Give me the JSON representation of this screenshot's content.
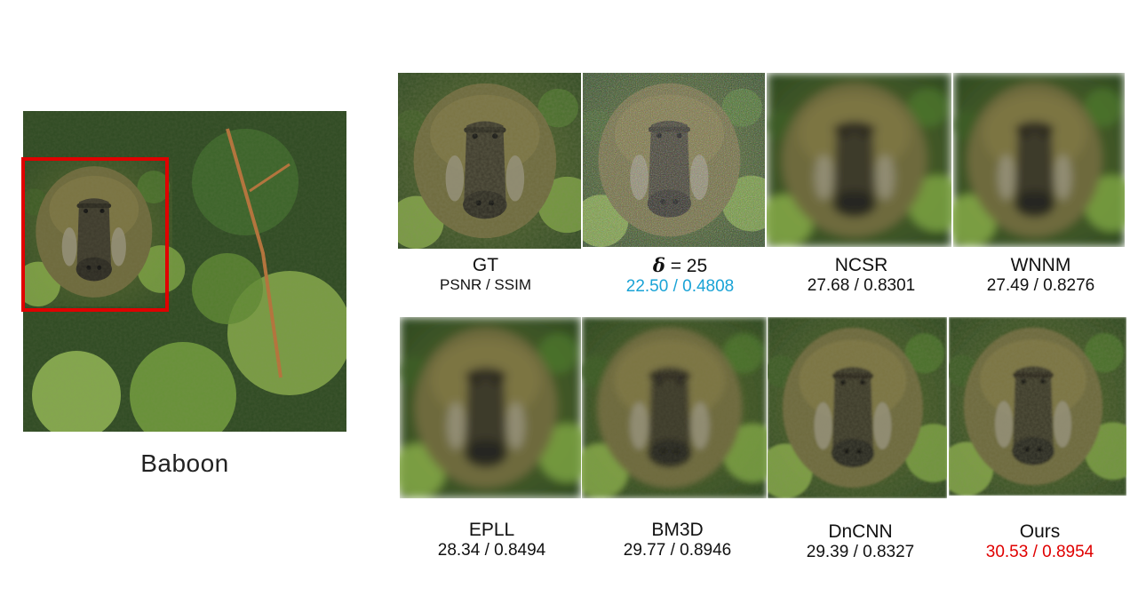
{
  "overview": {
    "caption": "Baboon",
    "crop_box_color": "#e00000"
  },
  "panels_top": [
    {
      "name": "GT",
      "metric": "PSNR / SSIM",
      "metric_color": "#111111"
    },
    {
      "name_symbol": "δ",
      "name_rest": " = 25",
      "metric": "22.50 / 0.4808",
      "metric_color": "#1aa3d6"
    },
    {
      "name": "NCSR",
      "metric": "27.68 / 0.8301",
      "metric_color": "#111111"
    },
    {
      "name": "WNNM",
      "metric": "27.49 / 0.8276",
      "metric_color": "#111111"
    }
  ],
  "panels_bottom": [
    {
      "name": "EPLL",
      "metric": "28.34 / 0.8494",
      "metric_color": "#111111"
    },
    {
      "name": "BM3D",
      "metric": "29.77 / 0.8946",
      "metric_color": "#111111"
    },
    {
      "name": "DnCNN",
      "metric": "29.39 / 0.8327",
      "metric_color": "#111111"
    },
    {
      "name": "Ours",
      "metric": "30.53 / 0.8954",
      "metric_color": "#e00000"
    }
  ]
}
